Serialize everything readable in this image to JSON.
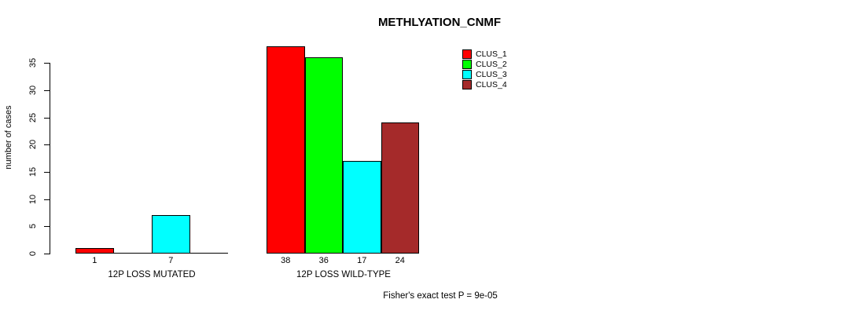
{
  "chart_data": {
    "type": "bar",
    "title": "METHLYATION_CNMF",
    "ylabel": "number of cases",
    "xlabel": "",
    "categories": [
      "12P LOSS MUTATED",
      "12P LOSS WILD-TYPE"
    ],
    "series": [
      {
        "name": "CLUS_1",
        "color": "#FF0000",
        "values": [
          1,
          38
        ]
      },
      {
        "name": "CLUS_2",
        "color": "#00FF00",
        "values": [
          0,
          36
        ]
      },
      {
        "name": "CLUS_3",
        "color": "#00FFFF",
        "values": [
          7,
          17
        ]
      },
      {
        "name": "CLUS_4",
        "color": "#A52A2A",
        "values": [
          0,
          24
        ]
      }
    ],
    "bar_value_labels": [
      [
        "1",
        null,
        "7",
        null
      ],
      [
        "38",
        "36",
        "17",
        "24"
      ]
    ],
    "yticks": [
      0,
      5,
      10,
      15,
      20,
      25,
      30,
      35
    ],
    "ylim": [
      0,
      38
    ],
    "grid": false,
    "legend_position": "top-right",
    "legend_entries": [
      "CLUS_1",
      "CLUS_2",
      "CLUS_3",
      "CLUS_4"
    ],
    "annotation": "Fisher's exact test P = 9e-05"
  }
}
